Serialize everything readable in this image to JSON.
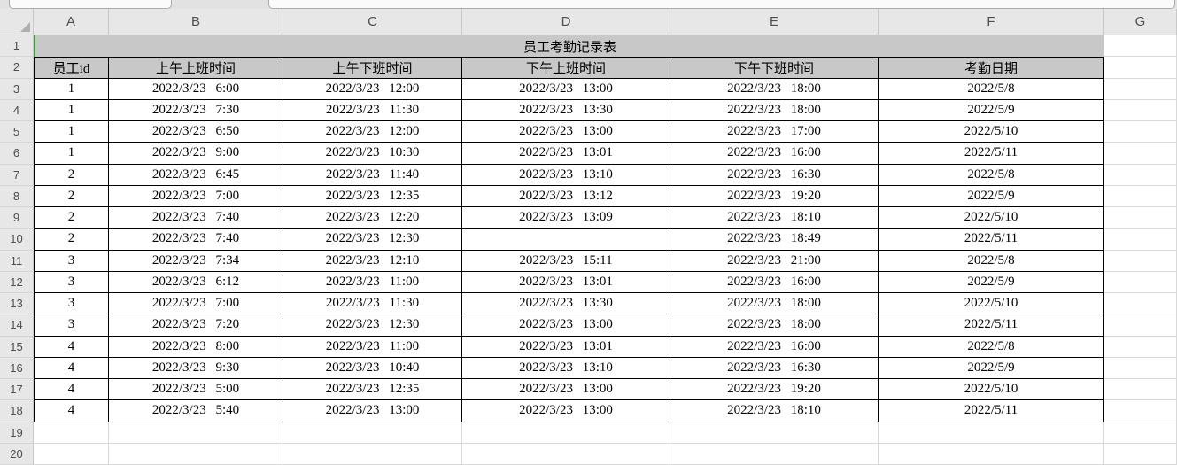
{
  "app": {
    "type": "spreadsheet",
    "name_box_value": "",
    "formula_bar_value": ""
  },
  "grid": {
    "columns": [
      "A",
      "B",
      "C",
      "D",
      "E",
      "F",
      "G"
    ],
    "rows": [
      "1",
      "2",
      "3",
      "4",
      "5",
      "6",
      "7",
      "8",
      "9",
      "10",
      "11",
      "12",
      "13",
      "14",
      "15",
      "16",
      "17",
      "18",
      "19",
      "20"
    ]
  },
  "sheet": {
    "title": "员工考勤记录表",
    "title_merge": "A1:F1",
    "headers": [
      "员工id",
      "上午上班时间",
      "上午下班时间",
      "下午上班时间",
      "下午下班时间",
      "考勤日期"
    ],
    "rows": [
      [
        "1",
        "2022/3/23 6:00",
        "2022/3/23 12:00",
        "2022/3/23 13:00",
        "2022/3/23 18:00",
        "2022/5/8"
      ],
      [
        "1",
        "2022/3/23 7:30",
        "2022/3/23 11:30",
        "2022/3/23 13:30",
        "2022/3/23 18:00",
        "2022/5/9"
      ],
      [
        "1",
        "2022/3/23 6:50",
        "2022/3/23 12:00",
        "2022/3/23 13:00",
        "2022/3/23 17:00",
        "2022/5/10"
      ],
      [
        "1",
        "2022/3/23 9:00",
        "2022/3/23 10:30",
        "2022/3/23 13:01",
        "2022/3/23 16:00",
        "2022/5/11"
      ],
      [
        "2",
        "2022/3/23 6:45",
        "2022/3/23 11:40",
        "2022/3/23 13:10",
        "2022/3/23 16:30",
        "2022/5/8"
      ],
      [
        "2",
        "2022/3/23 7:00",
        "2022/3/23 12:35",
        "2022/3/23 13:12",
        "2022/3/23 19:20",
        "2022/5/9"
      ],
      [
        "2",
        "2022/3/23 7:40",
        "2022/3/23 12:20",
        "2022/3/23 13:09",
        "2022/3/23 18:10",
        "2022/5/10"
      ],
      [
        "2",
        "2022/3/23 7:40",
        "2022/3/23 12:30",
        "",
        "2022/3/23 18:49",
        "2022/5/11"
      ],
      [
        "3",
        "2022/3/23 7:34",
        "2022/3/23 12:10",
        "2022/3/23 15:11",
        "2022/3/23 21:00",
        "2022/5/8"
      ],
      [
        "3",
        "2022/3/23 6:12",
        "2022/3/23 11:00",
        "2022/3/23 13:01",
        "2022/3/23 16:00",
        "2022/5/9"
      ],
      [
        "3",
        "2022/3/23 7:00",
        "2022/3/23 11:30",
        "2022/3/23 13:30",
        "2022/3/23 18:00",
        "2022/5/10"
      ],
      [
        "3",
        "2022/3/23 7:20",
        "2022/3/23 12:30",
        "2022/3/23 13:00",
        "2022/3/23 18:00",
        "2022/5/11"
      ],
      [
        "4",
        "2022/3/23 8:00",
        "2022/3/23 11:00",
        "2022/3/23 13:01",
        "2022/3/23 16:00",
        "2022/5/8"
      ],
      [
        "4",
        "2022/3/23 9:30",
        "2022/3/23 10:40",
        "2022/3/23 13:10",
        "2022/3/23 16:30",
        "2022/5/9"
      ],
      [
        "4",
        "2022/3/23 5:00",
        "2022/3/23 12:35",
        "2022/3/23 13:00",
        "2022/3/23 19:20",
        "2022/5/10"
      ],
      [
        "4",
        "2022/3/23 5:40",
        "2022/3/23 13:00",
        "2022/3/23 13:00",
        "2022/3/23 18:10",
        "2022/5/11"
      ]
    ]
  },
  "colors": {
    "cell_fill_gray": "#C8C8C8",
    "chrome_bg": "#E7E7E7",
    "grid_line": "#D9D9D9",
    "table_border": "#000000",
    "active_cell_green": "#3CA03C"
  }
}
